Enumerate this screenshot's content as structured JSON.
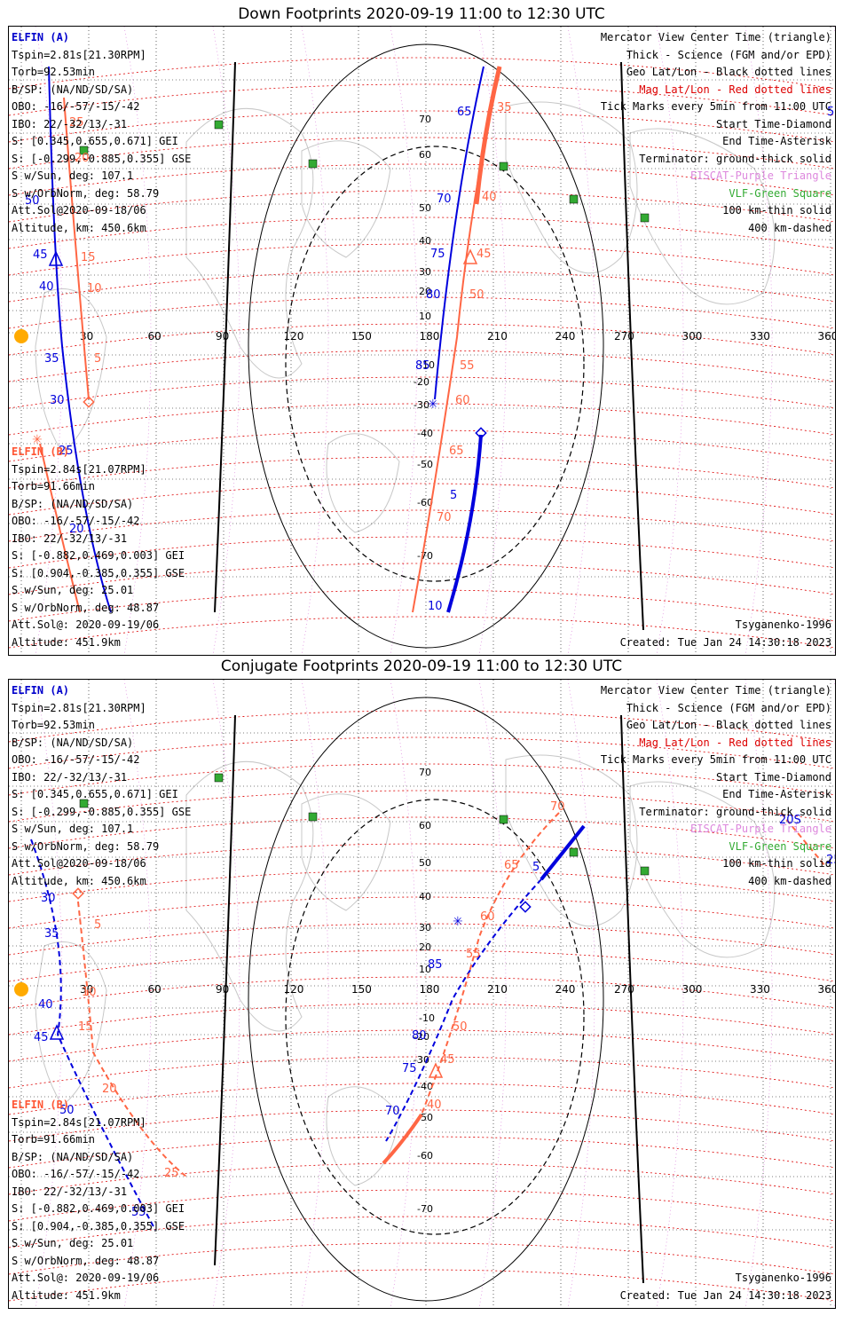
{
  "panels": [
    {
      "title": "Down Footprints 2020-09-19 11:00 to 12:30 UTC",
      "elfin_a": {
        "name": "ELFIN (A)",
        "lines": [
          "Tspin=2.81s[21.30RPM]",
          "Torb=92.53min",
          "B/SP: (NA/ND/SD/SA)",
          "OBO: -16/-57/-15/-42",
          "IBO: 22/-32/13/-31",
          "S: [0.345,0.655,0.671] GEI",
          "S: [-0.299,-0.885,0.355] GSE",
          "S w/Sun, deg: 107.1",
          "S w/OrbNorm, deg: 58.79",
          "Att.Sol@2020-09-18/06",
          "Altitude, km: 450.6km"
        ]
      },
      "elfin_b": {
        "name": "ELFIN (B)",
        "lines": [
          "Tspin=2.84s[21.07RPM]",
          "Torb=91.66min",
          "B/SP: (NA/ND/SD/SA)",
          "OBO: -16/-57/-15/-42",
          "IBO: 22/-32/13/-31",
          "S: [-0.882,0.469,0.003] GEI",
          "S: [0.904,-0.385,0.355] GSE",
          "S w/Sun, deg: 25.01",
          "S w/OrbNorm, deg: 48.87",
          "Att.Sol@: 2020-09-19/06",
          "Altitude: 451.9km"
        ]
      },
      "footer_model": "Tsyganenko-1996",
      "footer_created": "Created: Tue Jan 24 14:30:18 2023",
      "track_a_labels": [
        [
          "65",
          505,
          100
        ],
        [
          "70",
          482,
          198
        ],
        [
          "75",
          475,
          260
        ],
        [
          "80",
          470,
          306
        ],
        [
          "85",
          458,
          386
        ],
        [
          "5",
          497,
          532
        ],
        [
          "10",
          472,
          657
        ],
        [
          "55",
          922,
          100
        ],
        [
          "50",
          18,
          200
        ],
        [
          "45",
          27,
          261
        ],
        [
          "40",
          34,
          297
        ],
        [
          "35",
          40,
          378
        ],
        [
          "30",
          46,
          425
        ],
        [
          "25",
          56,
          482
        ],
        [
          "20",
          68,
          570
        ]
      ],
      "track_b_labels": [
        [
          "35",
          550,
          95
        ],
        [
          "40",
          533,
          196
        ],
        [
          "45",
          527,
          260
        ],
        [
          "50",
          519,
          306
        ],
        [
          "55",
          508,
          386
        ],
        [
          "60",
          503,
          425
        ],
        [
          "65",
          496,
          482
        ],
        [
          "70",
          482,
          557
        ],
        [
          "25",
          68,
          112
        ],
        [
          "20",
          74,
          152
        ],
        [
          "15",
          81,
          264
        ],
        [
          "10",
          88,
          299
        ],
        [
          "5",
          96,
          378
        ]
      ],
      "lat_ticks": [
        [
          "70",
          462,
          108
        ],
        [
          "60",
          462,
          148
        ],
        [
          "50",
          462,
          208
        ],
        [
          "40",
          462,
          245
        ],
        [
          "30",
          462,
          280
        ],
        [
          "20",
          462,
          302
        ],
        [
          "10",
          462,
          330
        ],
        [
          "-10",
          462,
          385
        ],
        [
          "-20",
          456,
          404
        ],
        [
          "-30",
          456,
          430
        ],
        [
          "-40",
          460,
          462
        ],
        [
          "-50",
          460,
          497
        ],
        [
          "-60",
          460,
          540
        ],
        [
          "-70",
          460,
          600
        ]
      ]
    },
    {
      "title": "Conjugate Footprints 2020-09-19 11:00 to 12:30 UTC",
      "elfin_a": {
        "name": "ELFIN (A)",
        "lines": [
          "Tspin=2.81s[21.30RPM]",
          "Torb=92.53min",
          "B/SP: (NA/ND/SD/SA)",
          "OBO: -16/-57/-15/-42",
          "IBO: 22/-32/13/-31",
          "S: [0.345,0.655,0.671] GEI",
          "S: [-0.299,-0.885,0.355] GSE",
          "S w/Sun, deg: 107.1",
          "S w/OrbNorm, deg: 58.79",
          "Att.Sol@2020-09-18/06",
          "Altitude, km: 450.6km"
        ]
      },
      "elfin_b": {
        "name": "ELFIN (B)",
        "lines": [
          "Tspin=2.84s[21.07RPM]",
          "Torb=91.66min",
          "B/SP: (NA/ND/SD/SA)",
          "OBO: -16/-57/-15/-42",
          "IBO: 22/-32/13/-31",
          "S: [-0.882,0.469,0.003] GEI",
          "S: [0.904,-0.385,0.355] GSE",
          "S w/Sun, deg: 25.01",
          "S w/OrbNorm, deg: 48.87",
          "Att.Sol@: 2020-09-19/06",
          "Altitude: 451.9km"
        ]
      },
      "footer_model": "Tsyganenko-1996",
      "footer_created": "Created: Tue Jan 24 14:30:18 2023",
      "track_a_labels": [
        [
          "5",
          590,
          215
        ],
        [
          "85",
          472,
          325
        ],
        [
          "80",
          454,
          405
        ],
        [
          "75",
          443,
          442
        ],
        [
          "70",
          424,
          490
        ],
        [
          "30",
          36,
          250
        ],
        [
          "35",
          40,
          290
        ],
        [
          "40",
          33,
          370
        ],
        [
          "45",
          28,
          407
        ],
        [
          "50",
          57,
          489
        ],
        [
          "55",
          138,
          604
        ],
        [
          "20S",
          868,
          162
        ],
        [
          "25",
          921,
          207
        ]
      ],
      "track_b_labels": [
        [
          "70",
          610,
          147
        ],
        [
          "65",
          558,
          213
        ],
        [
          "60",
          531,
          271
        ],
        [
          "55",
          515,
          313
        ],
        [
          "50",
          500,
          395
        ],
        [
          "45",
          486,
          432
        ],
        [
          "40",
          471,
          483
        ],
        [
          "5",
          96,
          280
        ],
        [
          "10",
          82,
          356
        ],
        [
          "15",
          78,
          395
        ],
        [
          "20",
          105,
          465
        ],
        [
          "25",
          175,
          560
        ]
      ],
      "lat_ticks": [
        [
          "70",
          462,
          108
        ],
        [
          "60",
          462,
          168
        ],
        [
          "50",
          462,
          210
        ],
        [
          "40",
          462,
          248
        ],
        [
          "30",
          462,
          283
        ],
        [
          "20",
          462,
          305
        ],
        [
          "10",
          462,
          330
        ],
        [
          "-10",
          462,
          385
        ],
        [
          "-20",
          456,
          406
        ],
        [
          "-30",
          456,
          432
        ],
        [
          "-40",
          460,
          462
        ],
        [
          "-50",
          460,
          497
        ],
        [
          "-60",
          460,
          540
        ],
        [
          "-70",
          460,
          600
        ]
      ]
    }
  ],
  "legend": {
    "view": "Mercator View Center Time (triangle)",
    "thick": "Thick - Science (FGM and/or EPD)",
    "geo": "Geo Lat/Lon - Black dotted lines",
    "mag": "Mag Lat/Lon - Red dotted lines",
    "ticks": "Tick Marks every 5min from 11:00 UTC",
    "start": "Start Time-Diamond",
    "end": "End Time-Asterisk",
    "term": "Terminator: ground-thick solid",
    "eiscat": "EISCAT-Purple Triangle",
    "vlf": "VLF-Green Square",
    "km100": "100 km-thin solid",
    "km400": "400 km-dashed"
  },
  "lon_ticks": [
    "30",
    "60",
    "90",
    "120",
    "150",
    "180",
    "210",
    "240",
    "270",
    "300",
    "330",
    "360"
  ],
  "colors": {
    "elfin_a": "#0000dd",
    "elfin_b": "#ff6644",
    "mag_grid": "#dd0000",
    "geo_grid": "#000000",
    "eiscat": "#dd88dd",
    "vlf": "#33aa33"
  }
}
